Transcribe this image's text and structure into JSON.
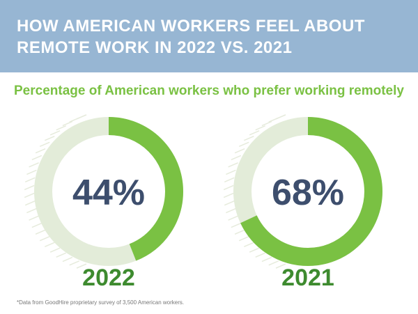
{
  "header": {
    "title": "HOW AMERICAN WORKERS FEEL ABOUT\nREMOTE WORK IN 2022 VS. 2021"
  },
  "subtitle": "Percentage of American workers who prefer working remotely",
  "footnote": "*Data from GoodHire proprietary survey of 3,500 American workers.",
  "colors": {
    "header_bg": "#97b6d3",
    "filled_arc": "#7ac143",
    "remaining_arc": "#e3ecd9",
    "percent_text": "#3d4e6d",
    "year_text": "#3e8b2f"
  },
  "chart_data": [
    {
      "type": "pie",
      "style": "donut",
      "category": "2022",
      "value": 44,
      "label": "44%"
    },
    {
      "type": "pie",
      "style": "donut",
      "category": "2021",
      "value": 68,
      "label": "68%"
    }
  ]
}
